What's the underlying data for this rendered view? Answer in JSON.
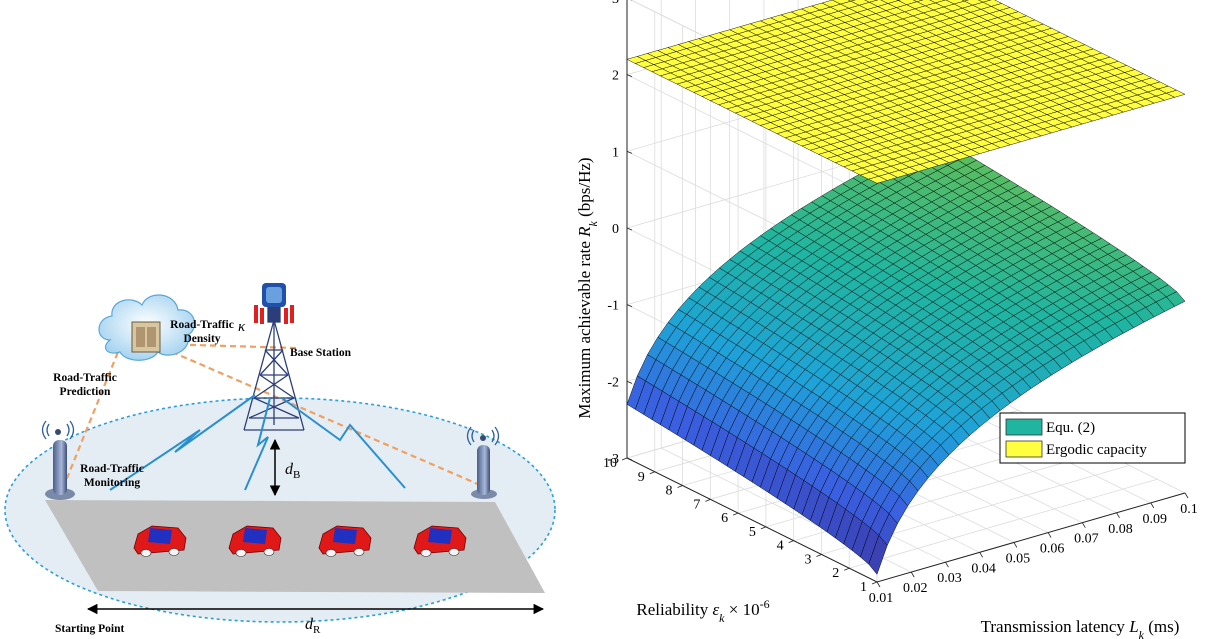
{
  "diagram": {
    "labels": {
      "road_traffic_density": "Road-Traffic Density",
      "kappa": "κ",
      "base_station": "Base Station",
      "road_traffic_prediction": "Road-Traffic Prediction",
      "road_traffic_monitoring": "Road-Traffic Monitoring",
      "d_b_main": "d",
      "d_b_sub": "B",
      "d_r_main": "d",
      "d_r_sub": "R",
      "starting_point": "Starting Point"
    },
    "colors": {
      "road": "#c0c0c0",
      "coverage_fill": "#e4edf3",
      "coverage_edge": "#2aa0d8",
      "link_line": "#f0a060",
      "tower": "#2c3e7a",
      "antenna": "#e02020",
      "car_body": "#e01818",
      "car_roof": "#2030c0"
    }
  },
  "chart_data": {
    "type": "surface",
    "zlabel": "Maximum achievable rate R_k (bps/Hz)",
    "xlabel": "Transmission latency L_k (ms)",
    "ylabel": "Reliability ε_k × 10^-6",
    "xlim": [
      0.01,
      0.1
    ],
    "ylim": [
      1,
      10
    ],
    "zlim": [
      -3,
      3
    ],
    "x_ticks": [
      "0.01",
      "0.02",
      "0.03",
      "0.04",
      "0.05",
      "0.06",
      "0.07",
      "0.08",
      "0.09",
      "0.1"
    ],
    "y_ticks": [
      "1",
      "2",
      "3",
      "4",
      "5",
      "6",
      "7",
      "8",
      "9",
      "10"
    ],
    "z_ticks": [
      "-3",
      "-2",
      "-1",
      "0",
      "1",
      "2",
      "3"
    ],
    "grid": true,
    "legend_position": "bottom-right",
    "series": [
      {
        "name": "Equ. (2)",
        "corners": {
          "x0.01_y1": -2.9,
          "x0.01_y10": -2.3,
          "x0.1_y1": -0.5,
          "x0.1_y10": 0.05
        },
        "colormap": [
          "#3b2f98",
          "#3a5fe0",
          "#1fa2d8",
          "#20b5a0",
          "#6cc04a"
        ]
      },
      {
        "name": "Ergodic capacity",
        "value": 2.2,
        "color": "#ffff40"
      }
    ]
  }
}
